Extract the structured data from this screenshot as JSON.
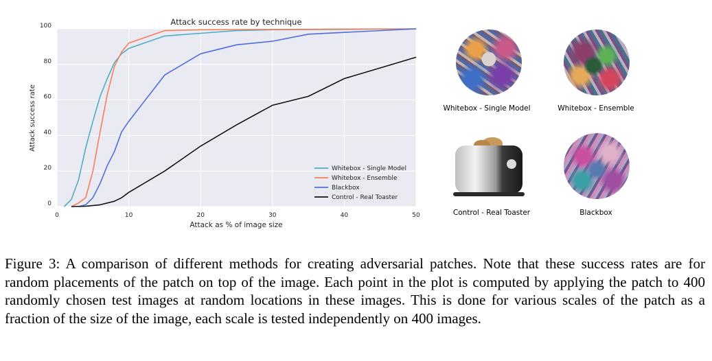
{
  "chart_data": {
    "type": "line",
    "title": "Attack success rate by technique",
    "xlabel": "Attack as % of image size",
    "ylabel": "Attack success rate",
    "xlim": [
      0,
      50
    ],
    "ylim": [
      0,
      100
    ],
    "xticks": [
      0,
      10,
      20,
      30,
      40,
      50
    ],
    "yticks": [
      0,
      20,
      40,
      60,
      80,
      100
    ],
    "grid": true,
    "legend_position": "lower-right",
    "series": [
      {
        "name": "Whitebox - Single Model",
        "color": "#4eaec4",
        "points": [
          [
            1,
            0
          ],
          [
            2,
            4
          ],
          [
            3,
            15
          ],
          [
            4,
            33
          ],
          [
            5,
            48
          ],
          [
            6,
            62
          ],
          [
            7,
            72
          ],
          [
            8,
            81
          ],
          [
            9,
            86
          ],
          [
            10,
            89
          ],
          [
            15,
            96
          ],
          [
            20,
            97.5
          ],
          [
            25,
            99
          ],
          [
            30,
            99.5
          ],
          [
            40,
            99.7
          ],
          [
            50,
            100
          ]
        ]
      },
      {
        "name": "Whitebox - Ensemble",
        "color": "#f77e5a",
        "points": [
          [
            2,
            0
          ],
          [
            3,
            2
          ],
          [
            4,
            5
          ],
          [
            5,
            20
          ],
          [
            6,
            42
          ],
          [
            7,
            63
          ],
          [
            8,
            79
          ],
          [
            9,
            87
          ],
          [
            10,
            92
          ],
          [
            15,
            99
          ],
          [
            20,
            99.5
          ],
          [
            30,
            99.7
          ],
          [
            40,
            99.9
          ],
          [
            50,
            100
          ]
        ]
      },
      {
        "name": "Blackbox",
        "color": "#4f6fd8",
        "points": [
          [
            3,
            0
          ],
          [
            4,
            1
          ],
          [
            5,
            5
          ],
          [
            6,
            13
          ],
          [
            7,
            23
          ],
          [
            8,
            31
          ],
          [
            9,
            42
          ],
          [
            10,
            48
          ],
          [
            15,
            74
          ],
          [
            20,
            86
          ],
          [
            25,
            91
          ],
          [
            30,
            93
          ],
          [
            35,
            97
          ],
          [
            40,
            98
          ],
          [
            50,
            100
          ]
        ]
      },
      {
        "name": "Control - Real Toaster",
        "color": "#111111",
        "points": [
          [
            2,
            0
          ],
          [
            4,
            0.2
          ],
          [
            6,
            1
          ],
          [
            8,
            3
          ],
          [
            9,
            5
          ],
          [
            10,
            8
          ],
          [
            15,
            20
          ],
          [
            20,
            34
          ],
          [
            25,
            46
          ],
          [
            30,
            57
          ],
          [
            35,
            62
          ],
          [
            40,
            72
          ],
          [
            45,
            78
          ],
          [
            50,
            84
          ]
        ]
      }
    ]
  },
  "panels": [
    {
      "label": "Whitebox - Single Model",
      "kind": "patch-single"
    },
    {
      "label": "Whitebox - Ensemble",
      "kind": "patch-ensemble"
    },
    {
      "label": "Control - Real Toaster",
      "kind": "toaster"
    },
    {
      "label": "Blackbox",
      "kind": "patch-blackbox"
    }
  ],
  "caption": "Figure 3: A comparison of different methods for creating adversarial patches. Note that these success rates are for random placements of the patch on top of the image. Each point in the plot is computed by applying the patch to 400 randomly chosen test images at random locations in these images. This is done for various scales of the patch as a fraction of the size of the image, each scale is tested independently on 400 images."
}
